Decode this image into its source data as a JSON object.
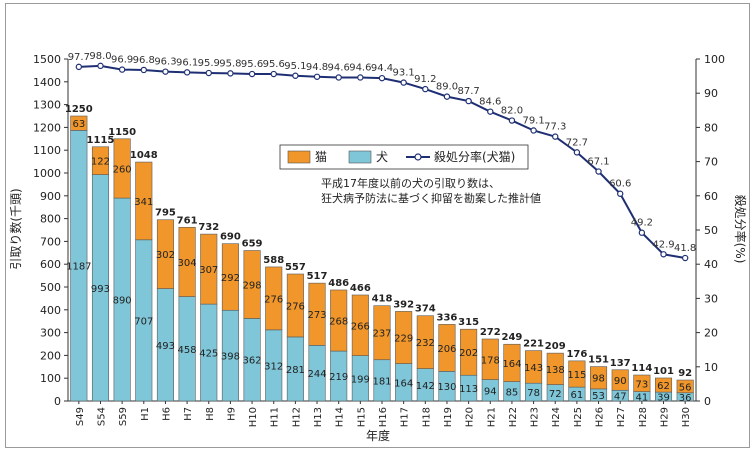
{
  "chart_data": {
    "type": "bar+line",
    "categories": [
      "S49",
      "S54",
      "S59",
      "H1",
      "H6",
      "H7",
      "H8",
      "H9",
      "H10",
      "H11",
      "H12",
      "H13",
      "H14",
      "H15",
      "H16",
      "H17",
      "H18",
      "H19",
      "H20",
      "H21",
      "H22",
      "H23",
      "H24",
      "H25",
      "H26",
      "H27",
      "H28",
      "H29",
      "H30"
    ],
    "series": [
      {
        "name": "犬",
        "type": "stacked-bar",
        "color": "#7fc6d8",
        "values": [
          1187,
          993,
          890,
          707,
          493,
          458,
          425,
          398,
          362,
          312,
          281,
          244,
          219,
          199,
          181,
          164,
          142,
          130,
          113,
          94,
          85,
          78,
          72,
          61,
          53,
          47,
          41,
          39,
          36
        ]
      },
      {
        "name": "猫",
        "type": "stacked-bar",
        "color": "#f0962a",
        "values": [
          63,
          122,
          260,
          341,
          302,
          304,
          307,
          292,
          298,
          276,
          276,
          273,
          268,
          266,
          237,
          229,
          232,
          206,
          202,
          178,
          164,
          143,
          138,
          115,
          98,
          90,
          73,
          62,
          56
        ]
      },
      {
        "name": "殺処分率(犬猫)",
        "type": "line",
        "axis": "right",
        "color": "#1f2f73",
        "values": [
          97.7,
          98.0,
          96.9,
          96.8,
          96.3,
          96.1,
          95.9,
          95.8,
          95.6,
          95.6,
          95.1,
          94.8,
          94.6,
          94.6,
          94.4,
          93.1,
          91.2,
          89.0,
          87.7,
          84.6,
          82.0,
          79.1,
          77.3,
          72.7,
          67.1,
          60.6,
          49.2,
          42.9,
          41.8
        ]
      }
    ],
    "totals": [
      1250,
      1115,
      1150,
      1048,
      795,
      761,
      732,
      690,
      659,
      588,
      557,
      517,
      486,
      466,
      418,
      392,
      374,
      336,
      315,
      272,
      249,
      221,
      209,
      176,
      151,
      137,
      114,
      101,
      92
    ],
    "rate_labels": [
      "97.7",
      "98.0",
      "96.9",
      "96.8",
      "96.3",
      "96.1",
      "95.9",
      "95.8",
      "95.6",
      "95.6",
      "95.1",
      "94.8",
      "94.6",
      "94.6",
      "94.4",
      "93.1",
      "91.2",
      "89.0",
      "87.7",
      "84.6",
      "82.0",
      "79.1",
      "77.3",
      "72.7",
      "67.1",
      "60.6",
      "49.2",
      "42.9",
      "41.8"
    ],
    "xlabel": "年度",
    "ylabel": "引取り数(千頭)",
    "y2label": "殺処分率(%)",
    "ylim": [
      0,
      1500
    ],
    "y2lim": [
      0,
      100
    ],
    "yticks": [
      0,
      100,
      200,
      300,
      400,
      500,
      600,
      700,
      800,
      900,
      1000,
      1100,
      1200,
      1300,
      1400,
      1500
    ],
    "y2ticks": [
      0,
      10,
      20,
      30,
      40,
      50,
      60,
      70,
      80,
      90,
      100
    ],
    "legend": {
      "placement": "center-top",
      "items": [
        "猫",
        "犬",
        "殺処分率(犬猫)"
      ]
    },
    "note": [
      "平成17年度以前の犬の引取り数は、",
      "狂犬病予防法に基づく抑留を勘案した推計値"
    ],
    "grid": false,
    "colors": {
      "dog": "#7fc6d8",
      "cat": "#f0962a",
      "line": "#1f2f73",
      "bar_edge": "#5a5a5a"
    }
  }
}
